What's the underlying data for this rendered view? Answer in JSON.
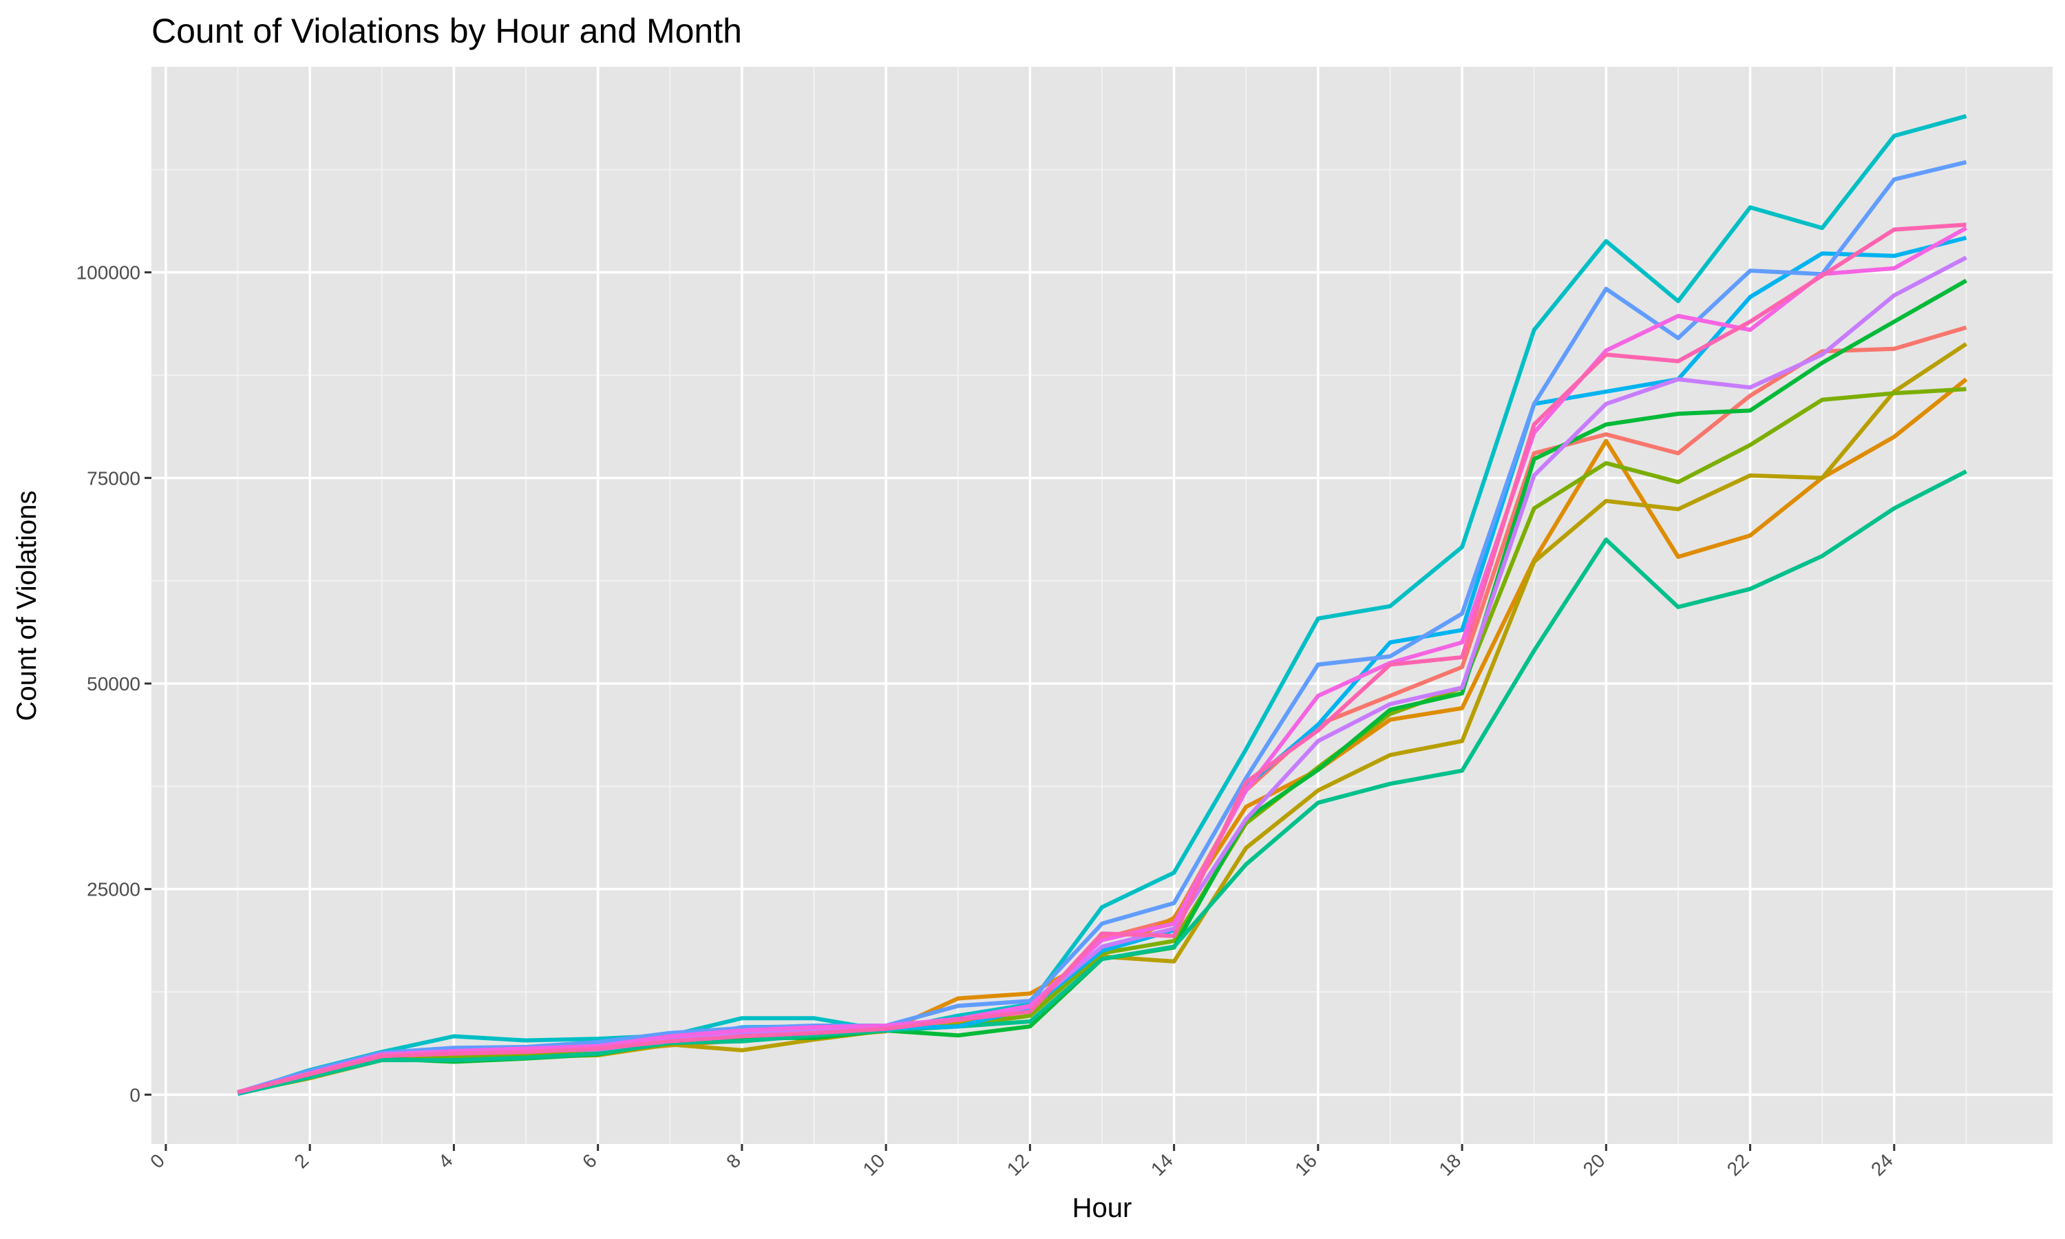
{
  "chart_data": {
    "type": "line",
    "title": "Count of Violations by Hour and Month",
    "xlabel": "Hour",
    "ylabel": "Count of Violations",
    "xlim": [
      -0.2,
      26.2
    ],
    "ylim": [
      -6000,
      125000
    ],
    "x_ticks": [
      0,
      2,
      4,
      6,
      8,
      10,
      12,
      14,
      16,
      18,
      20,
      22,
      24
    ],
    "x_tick_labels": [
      "0",
      "2",
      "4",
      "6",
      "8",
      "10",
      "12",
      "14",
      "16",
      "18",
      "20",
      "22",
      "24"
    ],
    "y_ticks": [
      0,
      25000,
      50000,
      75000,
      100000
    ],
    "y_tick_labels": [
      "0",
      "25000",
      "50000",
      "75000",
      "100000"
    ],
    "grid": true,
    "legend": "none",
    "x": [
      1,
      2,
      3,
      4,
      5,
      6,
      7,
      8,
      9,
      10,
      11,
      12,
      13,
      14,
      15,
      16,
      17,
      18,
      19,
      20,
      21,
      22,
      23,
      24,
      25
    ],
    "series": [
      {
        "color": "#F8766D",
        "values": [
          300,
          2400,
          4600,
          4900,
          5100,
          5500,
          6300,
          7000,
          7400,
          7900,
          9000,
          10500,
          19000,
          21300,
          37000,
          45000,
          48500,
          52000,
          78000,
          80300,
          78000,
          85000,
          90400,
          90700,
          93300
        ]
      },
      {
        "color": "#DE8C00",
        "values": [
          300,
          2300,
          4300,
          4400,
          4900,
          5200,
          6000,
          6600,
          7100,
          7700,
          11700,
          12300,
          17000,
          21500,
          35000,
          39500,
          45600,
          47000,
          65000,
          79500,
          65400,
          68000,
          75000,
          80000,
          87000
        ]
      },
      {
        "color": "#B79F00",
        "values": [
          200,
          2000,
          4200,
          4300,
          4600,
          4800,
          6100,
          5400,
          6700,
          7800,
          8700,
          10200,
          16800,
          16200,
          30000,
          37000,
          41300,
          43000,
          64800,
          72200,
          71200,
          75300,
          75000,
          85500,
          91300
        ]
      },
      {
        "color": "#7CAE00",
        "values": [
          200,
          2200,
          4400,
          4500,
          4700,
          5100,
          6200,
          6900,
          7300,
          7900,
          8400,
          9600,
          17200,
          18700,
          33000,
          39800,
          46300,
          49500,
          71300,
          76800,
          74500,
          79000,
          84500,
          85300,
          85800
        ]
      },
      {
        "color": "#00BA38",
        "values": [
          200,
          2300,
          4400,
          4000,
          4400,
          4900,
          6400,
          6900,
          6900,
          7800,
          7200,
          8300,
          16500,
          17900,
          33500,
          39500,
          46800,
          48800,
          77300,
          81500,
          82800,
          83200,
          89000,
          94000,
          99000
        ]
      },
      {
        "color": "#00C08B",
        "values": [
          100,
          2100,
          4200,
          4200,
          4500,
          5000,
          6300,
          6500,
          7200,
          7800,
          8300,
          8900,
          16500,
          18000,
          28000,
          35500,
          37800,
          39400,
          54000,
          67500,
          59300,
          61500,
          65500,
          71300,
          75800
        ]
      },
      {
        "color": "#00BFC4",
        "values": [
          200,
          3000,
          5200,
          7100,
          6600,
          6800,
          7200,
          9300,
          9300,
          7800,
          9600,
          11000,
          22800,
          27000,
          42000,
          57900,
          59400,
          66600,
          93000,
          103800,
          96500,
          107900,
          105400,
          116600,
          119000
        ]
      },
      {
        "color": "#00B4F0",
        "values": [
          200,
          2700,
          4700,
          5100,
          5400,
          5700,
          6700,
          8200,
          8300,
          8100,
          8300,
          10500,
          17500,
          20000,
          37500,
          45000,
          55000,
          56500,
          84000,
          85500,
          87000,
          97000,
          102300,
          102000,
          104200
        ]
      },
      {
        "color": "#619CFF",
        "values": [
          300,
          2900,
          5100,
          5700,
          5800,
          6400,
          7500,
          8100,
          8400,
          8400,
          10800,
          11400,
          20800,
          23300,
          38500,
          52300,
          53300,
          58500,
          84000,
          98000,
          92000,
          100200,
          99800,
          111300,
          113400
        ]
      },
      {
        "color": "#C77CFF",
        "values": [
          300,
          2500,
          4800,
          5100,
          5300,
          5500,
          6600,
          7500,
          8000,
          8200,
          9200,
          10700,
          18000,
          20200,
          33500,
          43000,
          47500,
          49500,
          75300,
          84000,
          87000,
          86000,
          90000,
          97200,
          101800
        ]
      },
      {
        "color": "#F564E3",
        "values": [
          300,
          2600,
          4900,
          5300,
          5600,
          5900,
          7100,
          7800,
          8200,
          8400,
          9200,
          10800,
          18800,
          20800,
          37000,
          48500,
          52500,
          55000,
          80500,
          90500,
          94700,
          93000,
          99800,
          100500,
          105400
        ]
      },
      {
        "color": "#FF64B0",
        "values": [
          300,
          2500,
          4700,
          5000,
          5200,
          5600,
          6500,
          7100,
          7500,
          8000,
          9100,
          10100,
          19600,
          19300,
          38000,
          44300,
          52300,
          53200,
          81500,
          90000,
          89200,
          94000,
          99600,
          105200,
          105800
        ]
      }
    ]
  }
}
